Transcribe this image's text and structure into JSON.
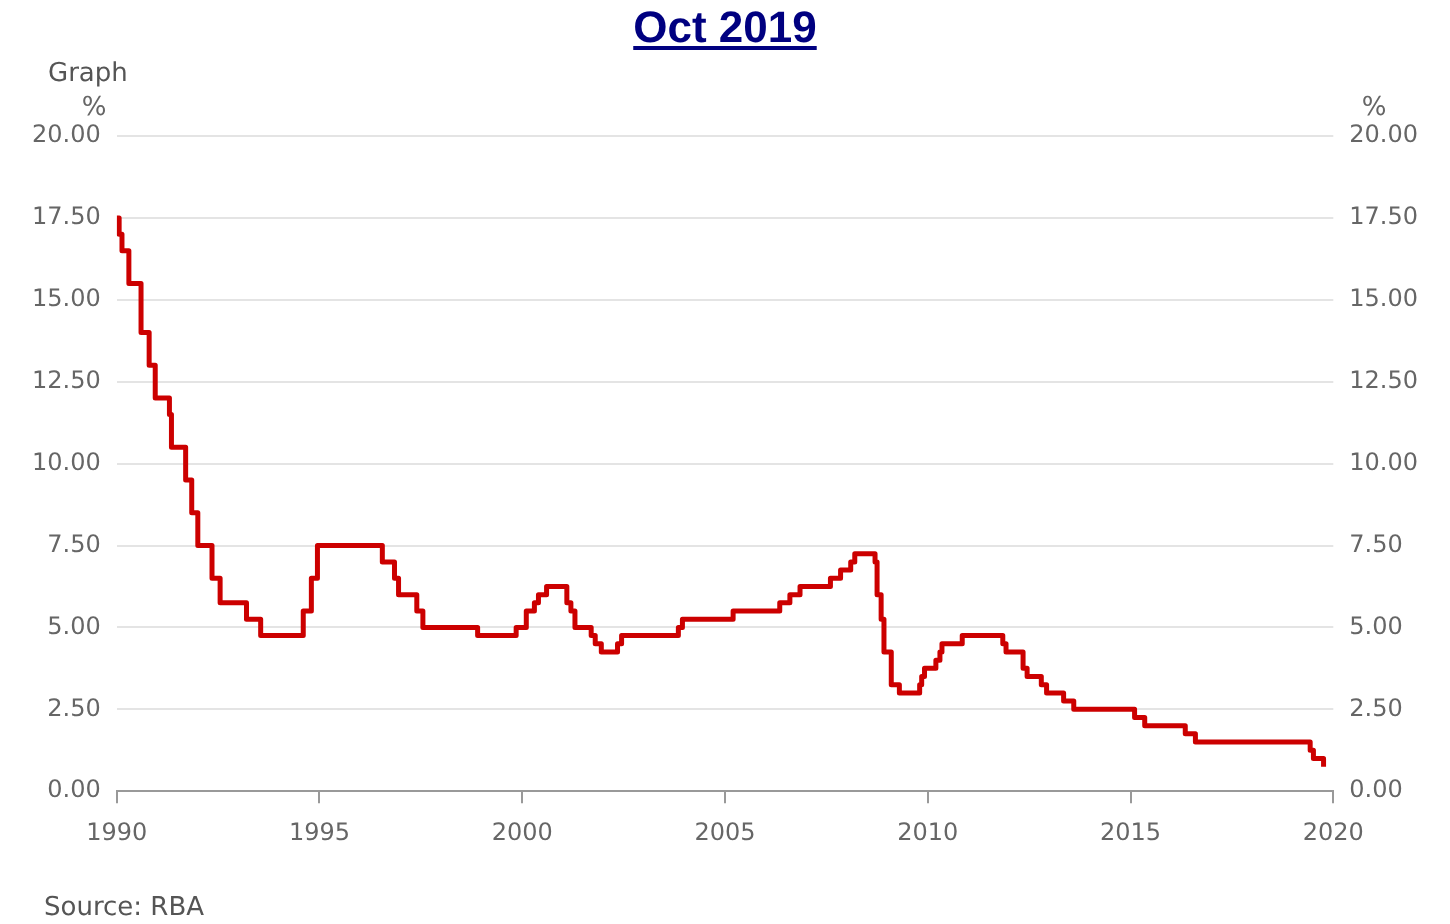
{
  "chart_data": {
    "type": "step",
    "title": "Oct 2019",
    "ylabel": "%",
    "y2label": "%",
    "annotations": [
      "Graph",
      "Source: RBA"
    ],
    "x": [
      1990.0,
      1990.06,
      1990.13,
      1990.3,
      1990.6,
      1990.8,
      1990.95,
      1991.3,
      1991.35,
      1991.7,
      1991.85,
      1992.0,
      1992.35,
      1992.55,
      1993.2,
      1993.55,
      1994.6,
      1994.8,
      1994.95,
      1996.55,
      1996.85,
      1996.95,
      1997.4,
      1997.55,
      1998.9,
      1999.85,
      2000.1,
      2000.3,
      2000.4,
      2000.6,
      2001.1,
      2001.2,
      2001.3,
      2001.7,
      2001.8,
      2001.95,
      2002.35,
      2002.45,
      2003.85,
      2003.95,
      2005.2,
      2006.35,
      2006.6,
      2006.85,
      2007.6,
      2007.85,
      2008.1,
      2008.2,
      2008.7,
      2008.75,
      2008.85,
      2008.92,
      2009.1,
      2009.3,
      2009.8,
      2009.85,
      2009.92,
      2010.2,
      2010.3,
      2010.35,
      2010.85,
      2011.85,
      2011.93,
      2012.35,
      2012.45,
      2012.8,
      2012.93,
      2013.35,
      2013.6,
      2015.1,
      2015.35,
      2016.35,
      2016.6,
      2019.43,
      2019.51,
      2019.76
    ],
    "series": [
      {
        "color": "#cc0000",
        "values": [
          17.5,
          17.0,
          16.5,
          15.5,
          14.0,
          13.0,
          12.0,
          11.5,
          10.5,
          9.5,
          8.5,
          7.5,
          6.5,
          5.75,
          5.25,
          4.75,
          5.5,
          6.5,
          7.5,
          7.0,
          6.5,
          6.0,
          5.5,
          5.0,
          4.75,
          5.0,
          5.5,
          5.75,
          6.0,
          6.25,
          5.75,
          5.5,
          5.0,
          4.75,
          4.5,
          4.25,
          4.5,
          4.75,
          5.0,
          5.25,
          5.5,
          5.75,
          6.0,
          6.25,
          6.5,
          6.75,
          7.0,
          7.25,
          7.0,
          6.0,
          5.25,
          4.25,
          3.25,
          3.0,
          3.25,
          3.5,
          3.75,
          4.0,
          4.25,
          4.5,
          4.75,
          4.5,
          4.25,
          3.75,
          3.5,
          3.25,
          3.0,
          2.75,
          2.5,
          2.25,
          2.0,
          1.75,
          1.5,
          1.25,
          1.0,
          0.75
        ]
      }
    ],
    "xlim": [
      1990,
      2020
    ],
    "xticks": [
      1990,
      1995,
      2000,
      2005,
      2010,
      2015,
      2020
    ],
    "ylim": [
      0,
      20
    ],
    "yticks": [
      {
        "value": 0,
        "label": "0.00"
      },
      {
        "value": 2.5,
        "label": "2.50"
      },
      {
        "value": 5,
        "label": "5.00"
      },
      {
        "value": 7.5,
        "label": "7.50"
      },
      {
        "value": 10,
        "label": "10.00"
      },
      {
        "value": 12.5,
        "label": "12.50"
      },
      {
        "value": 15,
        "label": "15.00"
      },
      {
        "value": 17.5,
        "label": "17.50"
      },
      {
        "value": 20,
        "label": "20.00"
      }
    ],
    "y2lim": [
      0,
      20
    ],
    "y2ticks": [
      {
        "value": 0,
        "label": "0.00"
      },
      {
        "value": 2.5,
        "label": "2.50"
      },
      {
        "value": 5,
        "label": "5.00"
      },
      {
        "value": 7.5,
        "label": "7.50"
      },
      {
        "value": 10,
        "label": "10.00"
      },
      {
        "value": 12.5,
        "label": "12.50"
      },
      {
        "value": 15,
        "label": "15.00"
      },
      {
        "value": 17.5,
        "label": "17.50"
      },
      {
        "value": 20,
        "label": "20.00"
      }
    ],
    "grid": "y",
    "legend": false,
    "marker": "none",
    "line_style": "solid"
  }
}
